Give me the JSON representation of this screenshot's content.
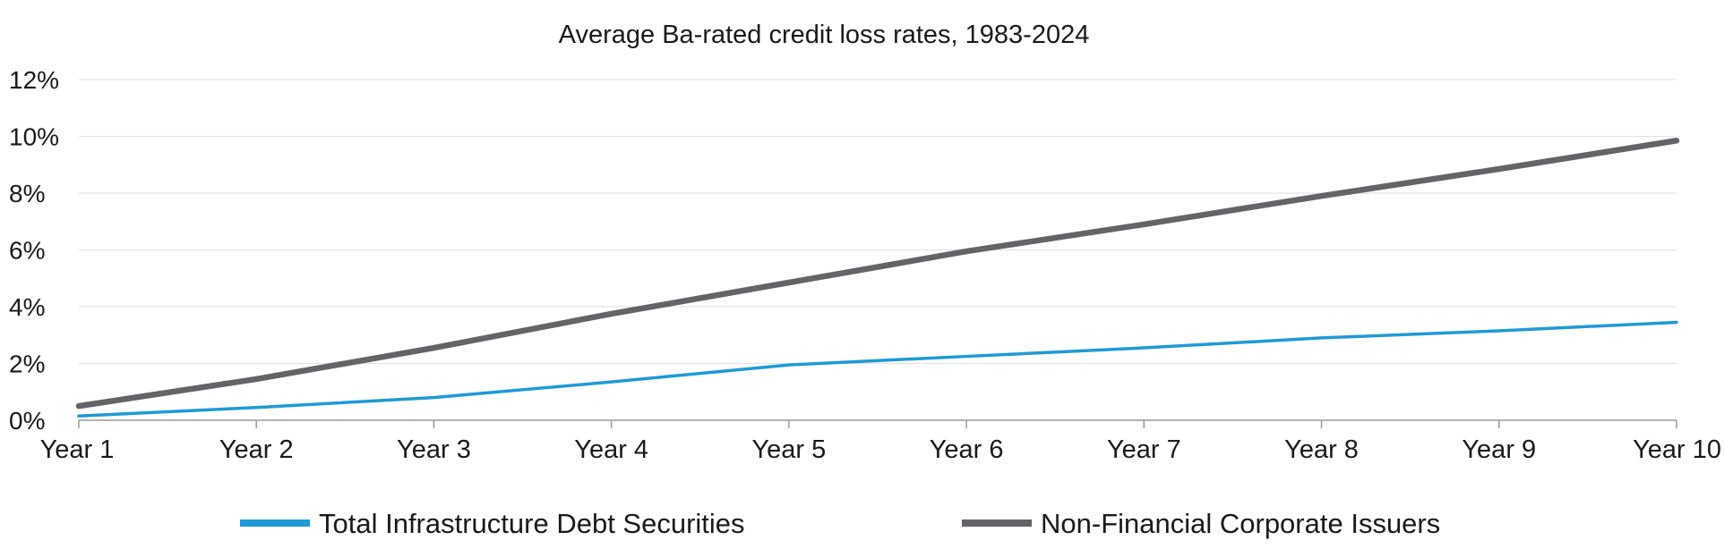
{
  "chart_data": {
    "type": "line",
    "title": "Average Ba-rated credit loss rates, 1983-2024",
    "categories": [
      "Year 1",
      "Year 2",
      "Year 3",
      "Year 4",
      "Year 5",
      "Year 6",
      "Year 7",
      "Year 8",
      "Year 9",
      "Year 10"
    ],
    "ylim": [
      0,
      12
    ],
    "yticks": [
      0,
      2,
      4,
      6,
      8,
      10,
      12
    ],
    "ytick_labels": [
      "0%",
      "2%",
      "4%",
      "6%",
      "8%",
      "10%",
      "12%"
    ],
    "grid": true,
    "legend_position": "bottom",
    "series": [
      {
        "name": "Total Infrastructure Debt Securities",
        "color": "#1f9ad6",
        "values": [
          0.15,
          0.45,
          0.8,
          1.35,
          1.95,
          2.25,
          2.55,
          2.9,
          3.15,
          3.45
        ]
      },
      {
        "name": "Non-Financial Corporate Issuers",
        "color": "#636466",
        "values": [
          0.5,
          1.45,
          2.55,
          3.75,
          4.85,
          5.95,
          6.9,
          7.9,
          8.85,
          9.85
        ]
      }
    ]
  }
}
